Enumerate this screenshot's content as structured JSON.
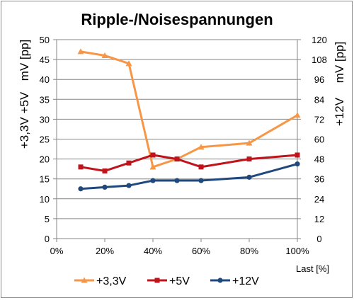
{
  "chart_data": {
    "type": "line",
    "title": "Ripple-/Noisespannungen",
    "xlabel": "Last [%]",
    "ylabel_left_line1": "+3,3V +5V",
    "ylabel_left_line2": "mV [pp]",
    "ylabel_right_line1": "mV [pp]",
    "ylabel_right_line2": "+12V",
    "x_range": [
      0,
      100
    ],
    "x_ticks": [
      0,
      20,
      40,
      60,
      80,
      100
    ],
    "x_tick_labels": [
      "0%",
      "20%",
      "40%",
      "60%",
      "80%",
      "100%"
    ],
    "y_left_range": [
      0,
      50
    ],
    "y_left_ticks": [
      0,
      5,
      10,
      15,
      20,
      25,
      30,
      35,
      40,
      45,
      50
    ],
    "y_right_range": [
      0,
      120
    ],
    "y_right_ticks": [
      0,
      12,
      24,
      36,
      48,
      60,
      72,
      84,
      96,
      108,
      120
    ],
    "grid": true,
    "legend_position": "bottom",
    "series": [
      {
        "name": "+3,3V",
        "axis": "left",
        "color": "#f79646",
        "marker": "triangle",
        "x": [
          10,
          20,
          30,
          40,
          50,
          60,
          80,
          100
        ],
        "values": [
          47,
          46,
          44,
          18,
          20,
          23,
          24,
          31
        ]
      },
      {
        "name": "+5V",
        "axis": "left",
        "color": "#c0141c",
        "marker": "square",
        "x": [
          10,
          20,
          30,
          40,
          50,
          60,
          80,
          100
        ],
        "values": [
          18,
          17,
          19,
          21,
          20,
          18,
          20,
          21
        ]
      },
      {
        "name": "+12V",
        "axis": "right",
        "color": "#1f497d",
        "marker": "circle",
        "x": [
          10,
          20,
          30,
          40,
          50,
          60,
          80,
          100
        ],
        "values": [
          30,
          31,
          32,
          35,
          35,
          35,
          37,
          45
        ]
      }
    ]
  }
}
